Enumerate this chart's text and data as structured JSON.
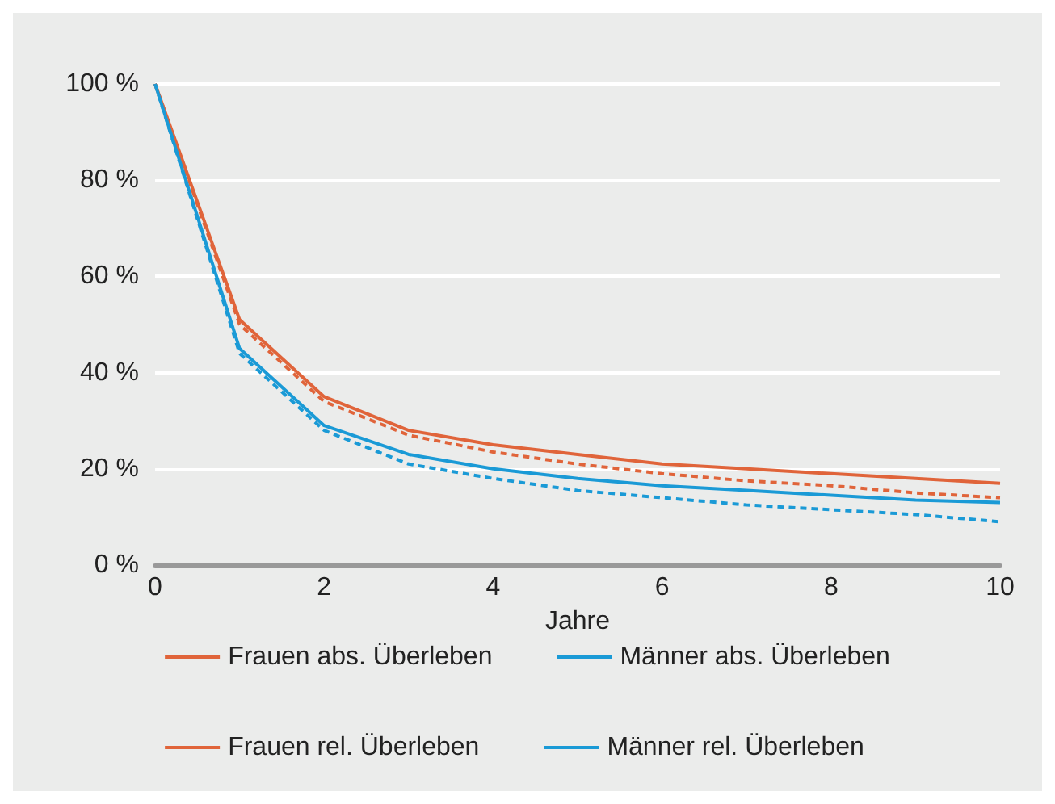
{
  "chart_data": {
    "type": "line",
    "xlabel": "Jahre",
    "x": [
      0,
      1,
      2,
      3,
      4,
      5,
      6,
      7,
      8,
      9,
      10
    ],
    "series": [
      {
        "name": "Frauen abs. Überleben",
        "color": "#e0643a",
        "line_style": "dashed",
        "values": [
          100,
          50,
          34,
          27,
          23.5,
          21,
          19,
          17.5,
          16.5,
          15,
          14
        ]
      },
      {
        "name": "Männer abs. Überleben",
        "color": "#1a9ad6",
        "line_style": "dashed",
        "values": [
          100,
          44,
          28,
          21,
          18,
          15.5,
          14,
          12.5,
          11.5,
          10.5,
          9
        ]
      },
      {
        "name": "Frauen rel. Überleben",
        "color": "#e0643a",
        "line_style": "solid",
        "values": [
          100,
          51,
          35,
          28,
          25,
          23,
          21,
          20,
          19,
          18,
          17
        ]
      },
      {
        "name": "Männer rel. Überleben",
        "color": "#1a9ad6",
        "line_style": "solid",
        "values": [
          100,
          45,
          29,
          23,
          20,
          18,
          16.5,
          15.5,
          14.5,
          13.5,
          13
        ]
      }
    ],
    "xlim": [
      0,
      10
    ],
    "xticks": [
      0,
      2,
      4,
      6,
      8,
      10
    ],
    "ylim": [
      0,
      100
    ],
    "yticks": [
      {
        "value": 0,
        "label": "0 %"
      },
      {
        "value": 20,
        "label": "20 %"
      },
      {
        "value": 40,
        "label": "40 %"
      },
      {
        "value": 60,
        "label": "60 %"
      },
      {
        "value": 80,
        "label": "80 %"
      },
      {
        "value": 100,
        "label": "100 %"
      }
    ],
    "grid": "y",
    "legend": "bottom",
    "marker": "none"
  }
}
